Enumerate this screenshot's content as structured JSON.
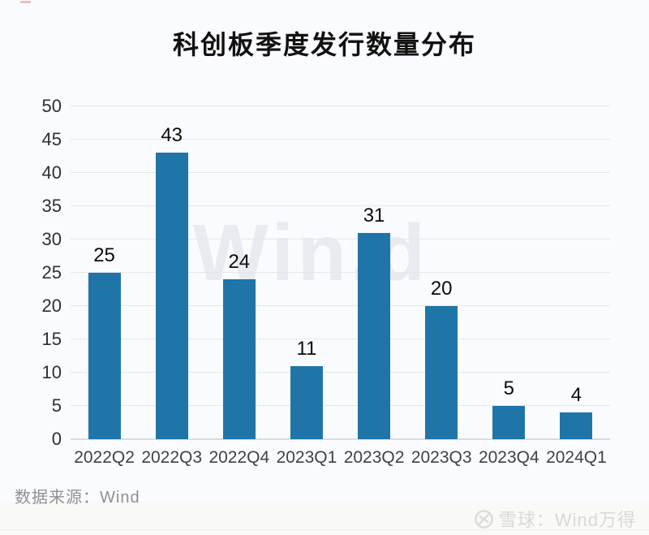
{
  "page": {
    "background": "#fafbfe"
  },
  "chart_data": {
    "type": "bar",
    "title": "科创板季度发行数量分布",
    "categories": [
      "2022Q2",
      "2022Q3",
      "2022Q4",
      "2023Q1",
      "2023Q2",
      "2023Q3",
      "2023Q4",
      "2024Q1"
    ],
    "values": [
      25,
      43,
      24,
      11,
      31,
      20,
      5,
      4
    ],
    "xlabel": "",
    "ylabel": "",
    "ylim": [
      0,
      50
    ],
    "yticks": [
      0,
      5,
      10,
      15,
      20,
      25,
      30,
      35,
      40,
      45,
      50
    ],
    "grid": "horizontal",
    "legend": "none",
    "data_labels": true,
    "bar_color": "#1f75a8"
  },
  "watermark": {
    "text": "Win.d"
  },
  "footer": {
    "source": "数据来源：Wind",
    "brand": "雪球：Wind万得",
    "brand_icon": "xueqiu-logo"
  }
}
